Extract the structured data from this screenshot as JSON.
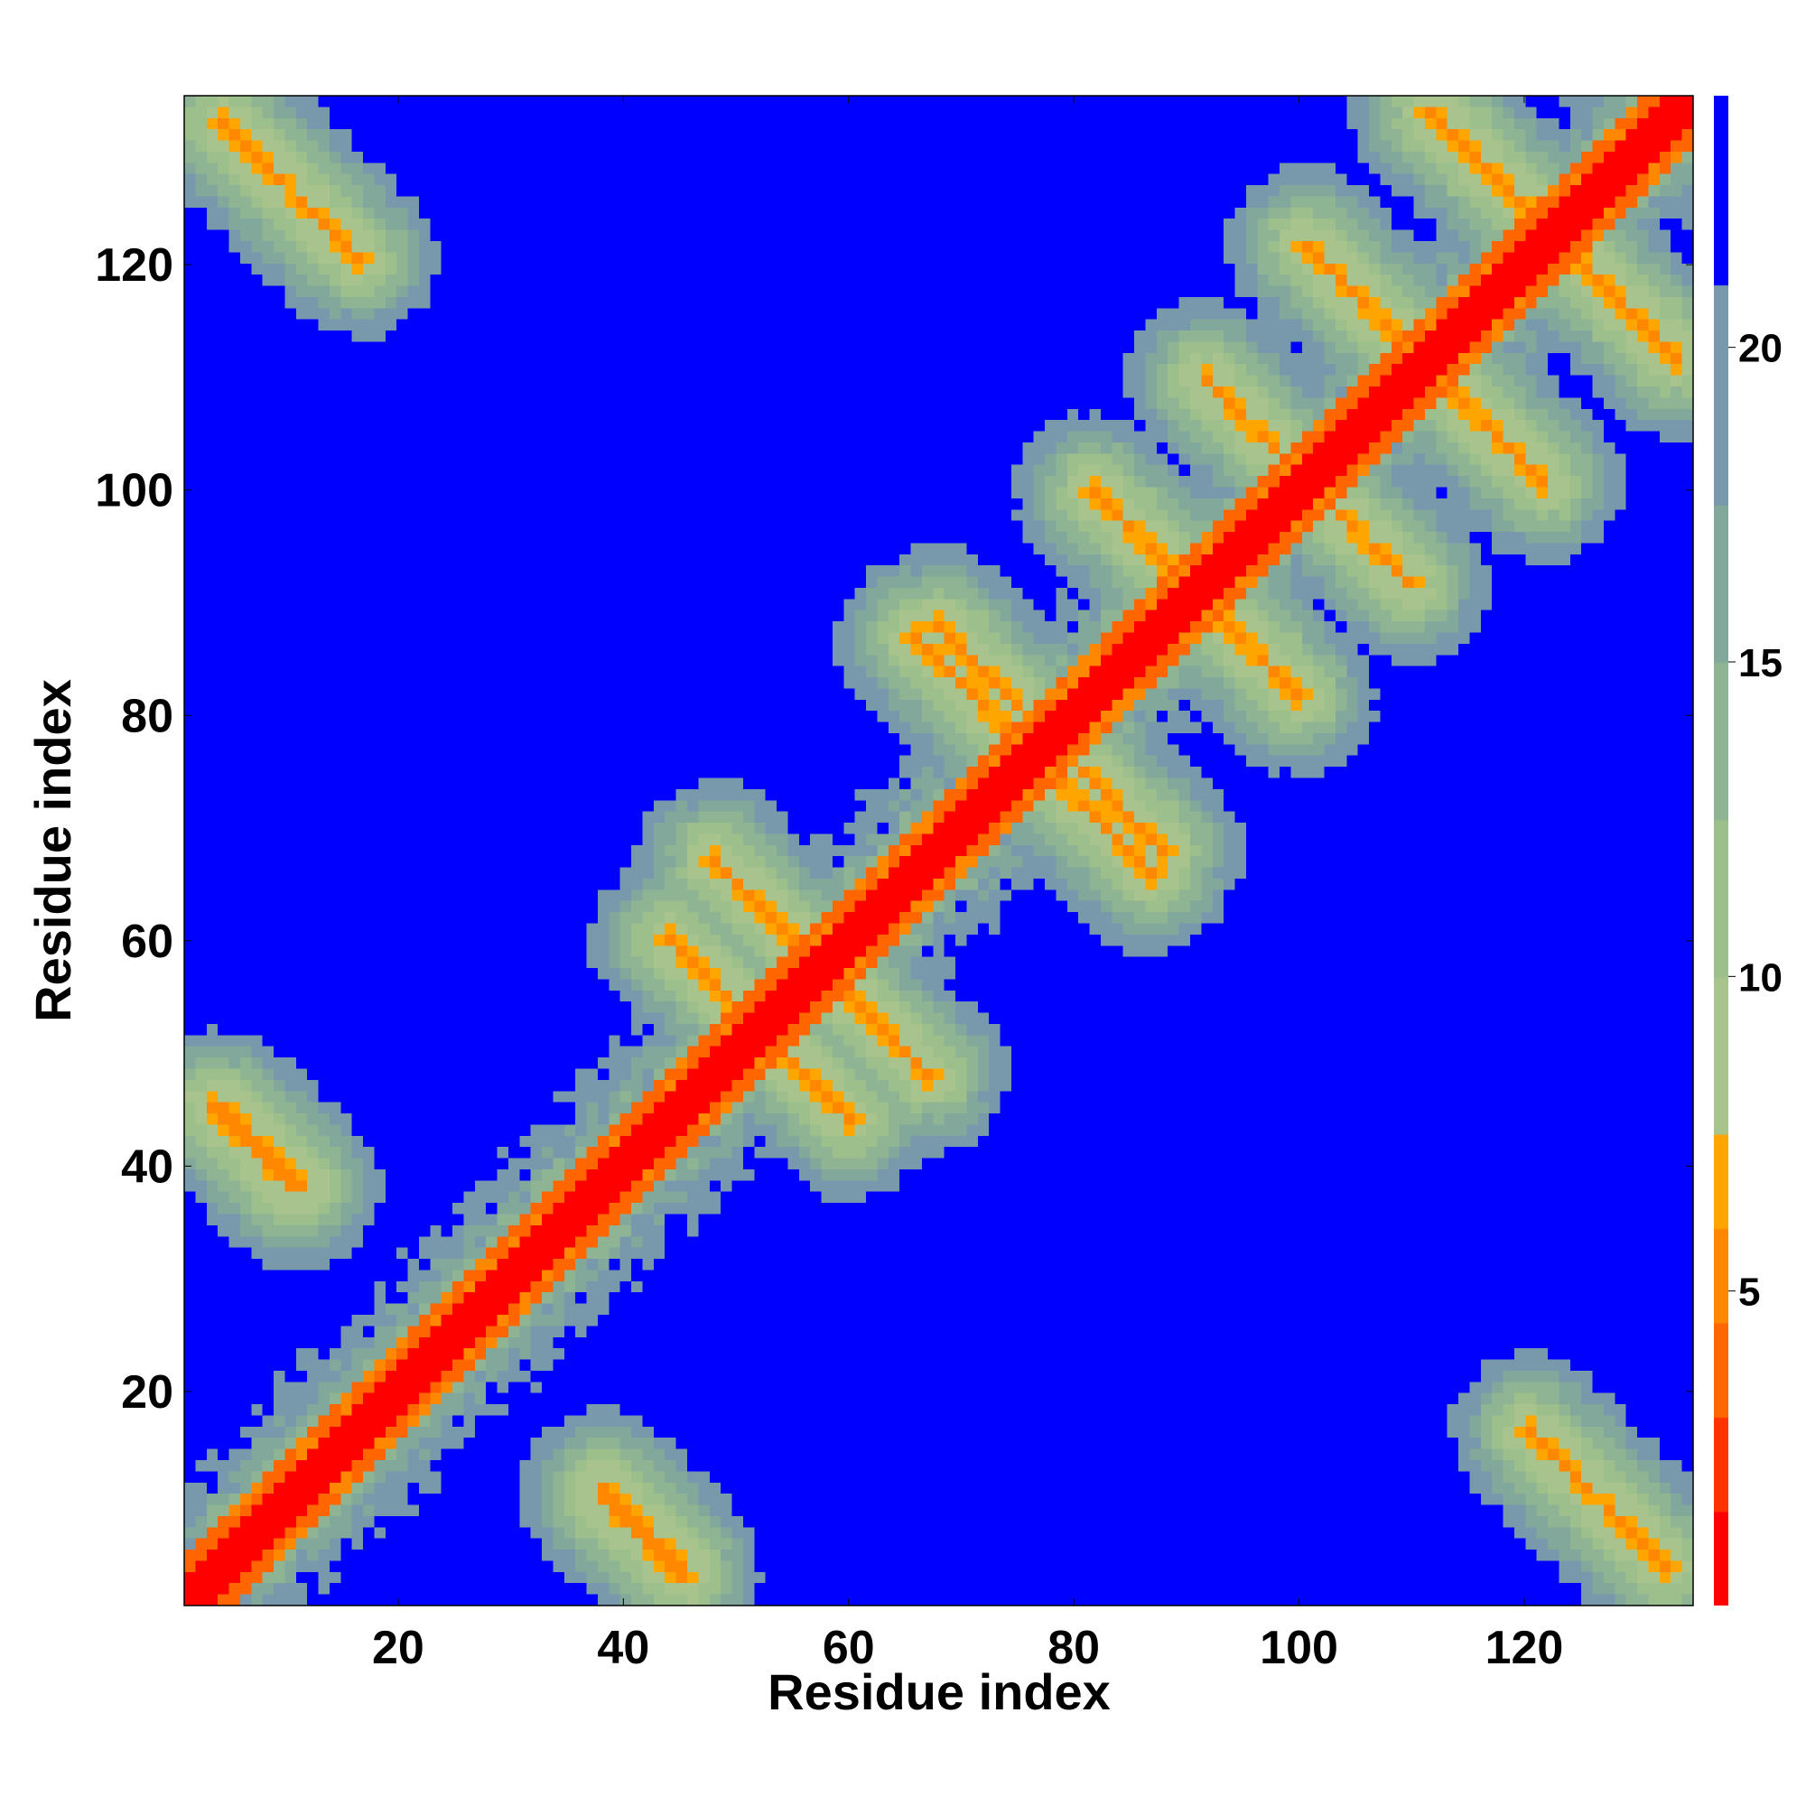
{
  "chart_data": {
    "type": "heatmap",
    "title": "",
    "xlabel": "Residue index",
    "ylabel": "Residue index",
    "xlim": [
      1,
      135
    ],
    "ylim": [
      1,
      135
    ],
    "n_residues": 135,
    "x_ticks": [
      20,
      40,
      60,
      80,
      100,
      120
    ],
    "y_ticks": [
      20,
      40,
      60,
      80,
      100,
      120
    ],
    "x_tick_labels": [
      "20",
      "40",
      "60",
      "80",
      "100",
      "120"
    ],
    "y_tick_labels": [
      "20",
      "40",
      "60",
      "80",
      "100",
      "120"
    ],
    "colorbar": {
      "range": [
        0,
        24
      ],
      "ticks": [
        5,
        10,
        15,
        20
      ],
      "tick_labels": [
        "5",
        "10",
        "15",
        "20"
      ],
      "levels": [
        {
          "max": 1.5,
          "color": "#ff0000"
        },
        {
          "max": 3,
          "color": "#ff3300"
        },
        {
          "max": 4.5,
          "color": "#ff6600"
        },
        {
          "max": 6,
          "color": "#ff8800"
        },
        {
          "max": 7.5,
          "color": "#ffa500"
        },
        {
          "max": 10,
          "color": "#a8c48c"
        },
        {
          "max": 12.5,
          "color": "#9dbf8c"
        },
        {
          "max": 15,
          "color": "#8fb494"
        },
        {
          "max": 17.5,
          "color": "#82a89c"
        },
        {
          "max": 21,
          "color": "#7899ac"
        },
        {
          "max": 24,
          "color": "#0000ff"
        }
      ]
    },
    "structure": {
      "cutoff": 21,
      "diagonal_band_width": 4.5,
      "contacts": [
        {
          "type": "antiparallel",
          "i_range": [
            4,
            16
          ],
          "j_range": [
            133,
            121
          ]
        },
        {
          "type": "antiparallel",
          "i_range": [
            4,
            11
          ],
          "j_range": [
            45,
            38
          ]
        },
        {
          "type": "antiparallel",
          "i_range": [
            38,
            45
          ],
          "j_range": [
            10,
            3
          ]
        },
        {
          "type": "antiparallel",
          "i_range": [
            44,
            52
          ],
          "j_range": [
            60,
            52
          ]
        },
        {
          "type": "antiparallel",
          "i_range": [
            48,
            56
          ],
          "j_range": [
            67,
            59
          ]
        },
        {
          "type": "antiparallel",
          "i_range": [
            66,
            75
          ],
          "j_range": [
            87,
            78
          ]
        },
        {
          "type": "antiparallel",
          "i_range": [
            76,
            88
          ],
          "j_range": [
            80,
            68
          ]
        },
        {
          "type": "antiparallel",
          "i_range": [
            82,
            90
          ],
          "j_range": [
            100,
            92
          ]
        },
        {
          "type": "antiparallel",
          "i_range": [
            92,
            99
          ],
          "j_range": [
            110,
            103
          ]
        },
        {
          "type": "antiparallel",
          "i_range": [
            101,
            110
          ],
          "j_range": [
            122,
            113
          ]
        },
        {
          "type": "antiparallel",
          "i_range": [
            112,
            124
          ],
          "j_range": [
            134,
            122
          ]
        },
        {
          "type": "antiparallel",
          "i_range": [
            104,
            110
          ],
          "j_range": [
            98,
            92
          ]
        }
      ]
    }
  }
}
